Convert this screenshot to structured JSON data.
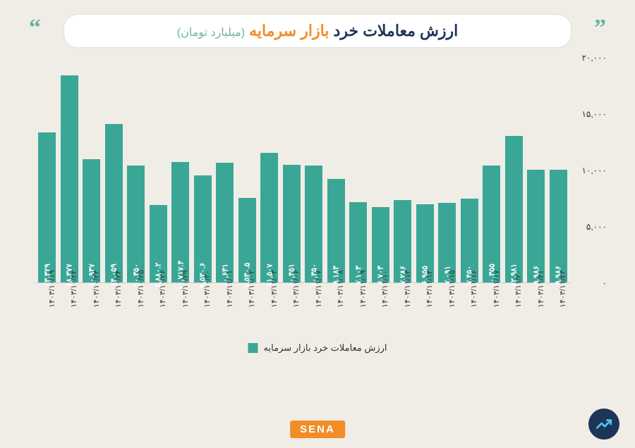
{
  "title": {
    "main1": "ارزش معاملات خرد",
    "main2": "بازار سرمایه",
    "sub": "(میلیارد تومان)"
  },
  "chart": {
    "type": "bar",
    "bar_color": "#3aa796",
    "value_text_color": "#ffffff",
    "background": "#f0ede7",
    "ylim": [
      0,
      20000
    ],
    "yticks": [
      0,
      5000,
      10000,
      15000,
      20000
    ],
    "ytick_labels": [
      "۰",
      "۵,۰۰۰",
      "۱۰,۰۰۰",
      "۱۵,۰۰۰",
      "۲۰,۰۰۰"
    ],
    "ytick_fontsize": 12,
    "xlabel_fontsize": 11,
    "value_fontsize": 11,
    "bar_width_pct": 85,
    "categories": [
      "۱۴۰۳/۱۰/۱۹",
      "۱۴۰۳/۱۰/۲۲",
      "۱۴۰۳/۱۰/۲۳",
      "۱۴۰۳/۱۰/۲۴",
      "۱۴۰۳/۱۰/۲۵",
      "۱۴۰۳/۱۰/۲۶",
      "۱۴۰۳/۱۰/۲۹",
      "۱۴۰۳/۱۰/۳۰",
      "۱۴۰۳/۱۱/۰۱",
      "۱۴۰۳/۱۱/۰۲",
      "۱۴۰۳/۱۱/۰۳",
      "۱۴۰۳/۱۱/۰۶",
      "۱۴۰۳/۱۱/۰۷",
      "۱۴۰۳/۱۱/۰۸",
      "۱۴۰۳/۱۱/۰۹",
      "۱۴۰۳/۱۱/۱۰",
      "۱۴۰۳/۱۱/۱۳",
      "۱۴۰۳/۱۱/۱۴",
      "۱۴۰۳/۱۱/۱۵",
      "۱۴۰۳/۱۱/۱۶",
      "۱۴۰۳/۱۱/۱۷",
      "۱۴۰۳/۱۱/۲۰",
      "۱۴۰۳/۱۱/۲۱",
      "۱۴۰۳/۱۱/۲۳"
    ],
    "values": [
      13329,
      18377,
      10937,
      14059,
      10350,
      6880,
      10717,
      9530,
      10631,
      7530,
      11507,
      10451,
      10350,
      9183,
      7103,
      6703,
      7286,
      6955,
      7091,
      7450,
      10355,
      12981,
      9986,
      9986
    ],
    "value_labels": [
      "۱۳,۳۲۹",
      "۱۸,۳۷۷",
      "۱۰,۹۳۷",
      "۱۴,۰۵۹",
      "۱۰,۳۵۰",
      "۶,۸۸۰.۲",
      "۱۰,۷۱۷.۴",
      "۹,۵۳۰.۶",
      "۱۰,۶۳۱",
      "۷,۵۳۰.۵",
      "۱۱,۵۰۷",
      "۱۰,۴۵۱",
      "۱۰,۳۵۰",
      "۹,۱۸۳",
      "۷,۱۰۳",
      "۶,۷۰۳",
      "۷,۲۸۶",
      "۶,۹۵۵",
      "۷,۰۹۱",
      "۷,۴۵۰",
      "۱۰,۳۵۵",
      "۱۲,۹۸۱",
      "۹,۹۸۶",
      "۹,۹۸۶"
    ],
    "legend_label": "ارزش معاملات خرد بازار سرمایه"
  },
  "footer": {
    "brand": "SENA"
  }
}
